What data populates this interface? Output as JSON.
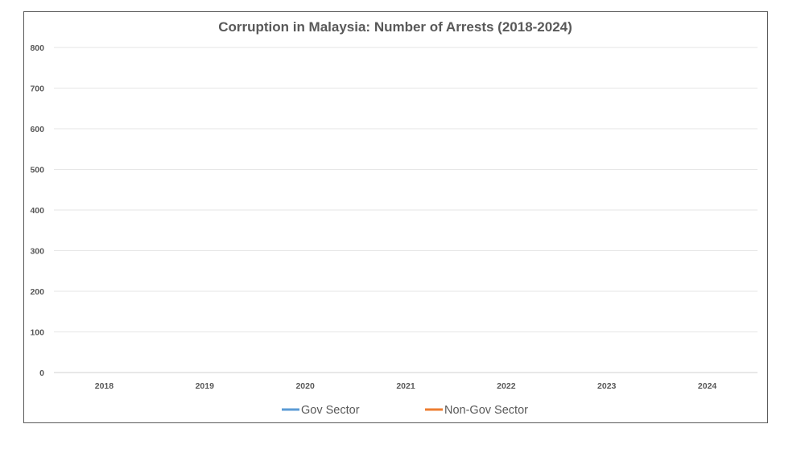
{
  "chart_data": {
    "type": "line",
    "title": "Corruption in Malaysia: Number of Arrests (2018-2024)",
    "xlabel": "",
    "ylabel": "",
    "categories": [
      "2018",
      "2019",
      "2020",
      "2021",
      "2022",
      "2023",
      "2024"
    ],
    "ylim": [
      0,
      800
    ],
    "yticks": [
      0,
      100,
      200,
      300,
      400,
      500,
      600,
      700,
      800
    ],
    "grid": true,
    "legend_position": "bottom",
    "series": [
      {
        "name": "Gov Sector",
        "color": "#5B9BD5",
        "values": [
          null,
          null,
          null,
          null,
          null,
          null,
          null
        ]
      },
      {
        "name": "Non-Gov Sector",
        "color": "#ED7D31",
        "values": [
          null,
          null,
          null,
          null,
          null,
          null,
          null
        ]
      }
    ]
  }
}
